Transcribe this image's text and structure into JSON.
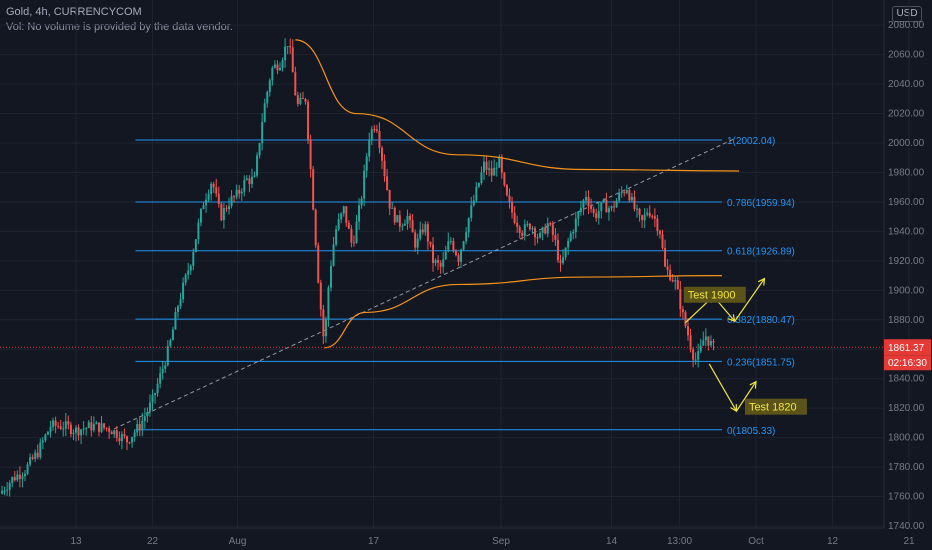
{
  "header": {
    "symbol_line": "Gold, 4h, CURRENCYCOM",
    "volume_note": "Vol: No volume is provided by the data vendor.",
    "currency": "USD"
  },
  "colors": {
    "background": "#131722",
    "grid": "#1f2330",
    "axis_text": "#787b86",
    "candle_up": "#26a69a",
    "candle_down": "#ef5350",
    "fib_line": "#2196f3",
    "fib_text": "#2962ff",
    "curve": "#f7931a",
    "trendline": "#9598a1",
    "arrow": "#f0e442",
    "test_label_bg": "#5b5318",
    "test_label_text": "#f0e442",
    "price_tag": "#e53935"
  },
  "chart_data": {
    "type": "candlestick",
    "title": "",
    "y_axis": {
      "min": 1740,
      "max": 2080,
      "ticks": [
        1740,
        1760,
        1780,
        1800,
        1820,
        1840,
        1860,
        1880,
        1900,
        1920,
        1940,
        1960,
        1980,
        2000,
        2020,
        2040,
        2060,
        2080
      ]
    },
    "x_axis": {
      "ticks": [
        {
          "label": "13",
          "x": 0.0
        },
        {
          "label": "22",
          "x": 9.0
        },
        {
          "label": "Aug",
          "x": 19.0
        },
        {
          "label": "17",
          "x": 35.0
        },
        {
          "label": "Sep",
          "x": 50.0
        },
        {
          "label": "14",
          "x": 63.0
        },
        {
          "label": "13:00",
          "x": 71.0
        },
        {
          "label": "Oct",
          "x": 80.0
        },
        {
          "label": "12",
          "x": 89.0
        },
        {
          "label": "21",
          "x": 98.0
        }
      ]
    },
    "grid": true,
    "path": [
      [
        -9.0,
        1762
      ],
      [
        -7.5,
        1772
      ],
      [
        -6.0,
        1778
      ],
      [
        -4.5,
        1790
      ],
      [
        -3.0,
        1808
      ],
      [
        -1.5,
        1808
      ],
      [
        0.0,
        1805
      ],
      [
        2.0,
        1808
      ],
      [
        4.0,
        1806
      ],
      [
        5.5,
        1800
      ],
      [
        6.0,
        1798
      ],
      [
        7.5,
        1808
      ],
      [
        9.0,
        1825
      ],
      [
        11.0,
        1862
      ],
      [
        12.0,
        1890
      ],
      [
        13.5,
        1920
      ],
      [
        15.0,
        1960
      ],
      [
        16.0,
        1975
      ],
      [
        17.0,
        1950
      ],
      [
        18.0,
        1960
      ],
      [
        19.0,
        1965
      ],
      [
        20.0,
        1975
      ],
      [
        21.0,
        1975
      ],
      [
        22.0,
        2020
      ],
      [
        23.0,
        2050
      ],
      [
        24.0,
        2055
      ],
      [
        25.0,
        2070
      ],
      [
        26.0,
        2025
      ],
      [
        27.0,
        2030
      ],
      [
        28.0,
        1950
      ],
      [
        28.6,
        1900
      ],
      [
        29.2,
        1863
      ],
      [
        29.8,
        1910
      ],
      [
        30.5,
        1940
      ],
      [
        31.5,
        1955
      ],
      [
        32.5,
        1930
      ],
      [
        33.5,
        1960
      ],
      [
        34.5,
        2005
      ],
      [
        35.3,
        2015
      ],
      [
        36.0,
        1990
      ],
      [
        37.0,
        1955
      ],
      [
        38.0,
        1945
      ],
      [
        39.0,
        1950
      ],
      [
        40.0,
        1930
      ],
      [
        41.0,
        1945
      ],
      [
        42.0,
        1920
      ],
      [
        43.0,
        1915
      ],
      [
        44.0,
        1935
      ],
      [
        45.0,
        1922
      ],
      [
        46.0,
        1945
      ],
      [
        47.0,
        1965
      ],
      [
        48.0,
        1985
      ],
      [
        49.0,
        1978
      ],
      [
        49.7,
        1990
      ],
      [
        50.5,
        1965
      ],
      [
        51.5,
        1950
      ],
      [
        52.5,
        1940
      ],
      [
        53.5,
        1945
      ],
      [
        54.5,
        1935
      ],
      [
        55.5,
        1945
      ],
      [
        56.3,
        1935
      ],
      [
        57.0,
        1915
      ],
      [
        58.0,
        1935
      ],
      [
        59.0,
        1950
      ],
      [
        60.0,
        1965
      ],
      [
        61.0,
        1950
      ],
      [
        62.0,
        1958
      ],
      [
        63.0,
        1955
      ],
      [
        64.0,
        1965
      ],
      [
        64.8,
        1970
      ],
      [
        65.5,
        1958
      ],
      [
        66.5,
        1945
      ],
      [
        67.3,
        1955
      ],
      [
        68.0,
        1950
      ],
      [
        68.7,
        1940
      ],
      [
        69.3,
        1915
      ],
      [
        70.0,
        1910
      ],
      [
        70.5,
        1905
      ],
      [
        71.0,
        1893
      ],
      [
        71.5,
        1880
      ],
      [
        72.0,
        1870
      ],
      [
        72.5,
        1858
      ],
      [
        73.0,
        1852
      ],
      [
        73.5,
        1860
      ],
      [
        74.0,
        1870
      ],
      [
        74.5,
        1865
      ],
      [
        75.0,
        1861
      ]
    ],
    "last_price": 1861.37,
    "countdown": "02:16:30",
    "fib_levels": [
      {
        "label": "1(2002.04)",
        "price": 2002.04
      },
      {
        "label": "0.786(1959.94)",
        "price": 1959.94
      },
      {
        "label": "0.618(1926.89)",
        "price": 1926.89
      },
      {
        "label": "0.382(1880.47)",
        "price": 1880.47
      },
      {
        "label": "0.236(1851.75)",
        "price": 1851.75
      },
      {
        "label": "0(1805.33)",
        "price": 1805.33
      }
    ],
    "fib_range": {
      "x_start": 7.0,
      "x_end": 76.0
    },
    "trendline": {
      "from": [
        4.5,
        1806
      ],
      "to": [
        77.5,
        2003
      ]
    },
    "curves": [
      {
        "name": "upper",
        "points": [
          [
            25.8,
            2070
          ],
          [
            33.0,
            2020
          ],
          [
            45.0,
            1992
          ],
          [
            60.0,
            1982
          ],
          [
            78.0,
            1981
          ]
        ]
      },
      {
        "name": "lower",
        "points": [
          [
            29.2,
            1861
          ],
          [
            34.0,
            1885
          ],
          [
            45.0,
            1904
          ],
          [
            60.0,
            1909
          ],
          [
            76.0,
            1910
          ]
        ]
      }
    ],
    "arrows": [
      {
        "from": [
          71.7,
          1878
        ],
        "to": [
          75.0,
          1896
        ]
      },
      {
        "from": [
          75.0,
          1896
        ],
        "to": [
          77.5,
          1879
        ]
      },
      {
        "from": [
          77.5,
          1879
        ],
        "to": [
          81.0,
          1908
        ]
      },
      {
        "from": [
          74.5,
          1850
        ],
        "to": [
          77.7,
          1818
        ]
      },
      {
        "from": [
          77.7,
          1818
        ],
        "to": [
          80.0,
          1838
        ]
      }
    ],
    "annotations": [
      {
        "text": "Test 1900",
        "x": 71.5,
        "price": 1897
      },
      {
        "text": "Test 1820",
        "x": 78.7,
        "price": 1821
      }
    ]
  }
}
